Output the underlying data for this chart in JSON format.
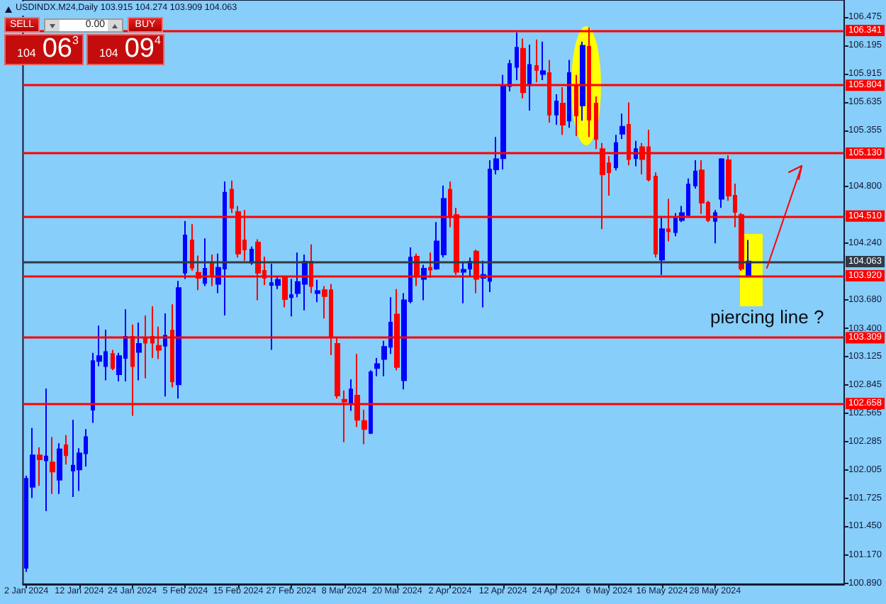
{
  "chart_data": {
    "type": "candlestick",
    "title": "USDINDX.M24,Daily 103.915 104.274 103.909 104.063",
    "categories": [
      "2 Jan 2024",
      null,
      null,
      null,
      null,
      null,
      null,
      null,
      "12 Jan 2024",
      null,
      null,
      null,
      null,
      null,
      null,
      null,
      "24 Jan 2024",
      null,
      null,
      null,
      null,
      null,
      null,
      null,
      "5 Feb 2024",
      null,
      null,
      null,
      null,
      null,
      null,
      null,
      "15 Feb 2024",
      null,
      null,
      null,
      null,
      null,
      null,
      null,
      "27 Feb 2024",
      null,
      null,
      null,
      null,
      null,
      null,
      null,
      "8 Mar 2024",
      null,
      null,
      null,
      null,
      null,
      null,
      null,
      "20 Mar 2024",
      null,
      null,
      null,
      null,
      null,
      null,
      null,
      "2 Apr 2024",
      null,
      null,
      null,
      null,
      null,
      null,
      null,
      "12 Apr 2024",
      null,
      null,
      null,
      null,
      null,
      null,
      null,
      "24 Apr 2024",
      null,
      null,
      null,
      null,
      null,
      null,
      null,
      "6 May 2024",
      null,
      null,
      null,
      null,
      null,
      null,
      null,
      "16 May 2024",
      null,
      null,
      null,
      null,
      null,
      null,
      null,
      "28 May 2024",
      null,
      null,
      null,
      null,
      null,
      null,
      null,
      null,
      null,
      null,
      null,
      null,
      null,
      null,
      null,
      null,
      null,
      null,
      null
    ],
    "ohlc": [
      [
        101.04,
        101.95,
        101.0,
        101.92
      ],
      [
        101.84,
        102.42,
        101.73,
        102.15
      ],
      [
        102.15,
        102.23,
        101.85,
        102.11
      ],
      [
        102.1,
        102.81,
        101.6,
        102.14
      ],
      [
        102.08,
        102.33,
        101.77,
        101.99
      ],
      [
        101.91,
        102.27,
        101.77,
        102.21
      ],
      [
        102.25,
        102.35,
        102.06,
        102.15
      ],
      [
        102.0,
        102.5,
        101.74,
        102.05
      ],
      [
        102.01,
        102.22,
        101.8,
        102.17
      ],
      [
        102.17,
        102.41,
        102.04,
        102.33
      ],
      [
        102.6,
        103.16,
        102.47,
        103.08
      ],
      [
        103.08,
        103.43,
        103.03,
        103.13
      ],
      [
        103.03,
        103.39,
        102.89,
        103.17
      ],
      [
        103.15,
        103.19,
        102.99,
        103.01
      ],
      [
        102.95,
        103.16,
        102.88,
        103.13
      ],
      [
        103.11,
        103.59,
        102.88,
        103.32
      ],
      [
        103.32,
        103.44,
        102.54,
        103.03
      ],
      [
        103.17,
        103.46,
        102.89,
        103.25
      ],
      [
        103.3,
        103.53,
        102.91,
        103.26
      ],
      [
        103.32,
        103.62,
        103.11,
        103.26
      ],
      [
        103.23,
        103.42,
        103.1,
        103.19
      ],
      [
        103.23,
        103.55,
        102.73,
        103.33
      ],
      [
        103.38,
        103.64,
        102.82,
        102.88
      ],
      [
        102.85,
        103.87,
        102.71,
        103.8
      ],
      [
        103.95,
        104.46,
        103.89,
        104.32
      ],
      [
        104.27,
        104.43,
        103.97,
        104.0
      ],
      [
        103.95,
        104.12,
        103.78,
        103.9
      ],
      [
        103.85,
        104.29,
        103.82,
        103.99
      ],
      [
        104.04,
        104.13,
        103.82,
        103.93
      ],
      [
        103.84,
        104.14,
        103.75,
        104.0
      ],
      [
        103.99,
        104.85,
        103.53,
        104.74
      ],
      [
        104.77,
        104.86,
        104.54,
        104.59
      ],
      [
        104.55,
        104.61,
        104.1,
        104.14
      ],
      [
        104.27,
        104.57,
        104.07,
        104.18
      ],
      [
        104.05,
        104.21,
        104.03,
        104.18
      ],
      [
        104.25,
        104.28,
        103.68,
        103.95
      ],
      [
        103.97,
        104.11,
        103.83,
        103.9
      ],
      [
        103.83,
        104.04,
        103.19,
        103.85
      ],
      [
        103.83,
        103.91,
        103.79,
        103.88
      ],
      [
        103.91,
        103.92,
        103.61,
        103.69
      ],
      [
        103.71,
        103.89,
        103.52,
        103.73
      ],
      [
        103.75,
        104.15,
        103.71,
        103.86
      ],
      [
        103.84,
        104.13,
        103.58,
        104.06
      ],
      [
        104.06,
        104.23,
        103.75,
        103.82
      ],
      [
        103.75,
        103.88,
        103.66,
        103.77
      ],
      [
        103.78,
        103.82,
        103.5,
        103.72
      ],
      [
        103.78,
        103.84,
        103.14,
        103.32
      ],
      [
        103.25,
        103.32,
        102.71,
        102.74
      ],
      [
        102.7,
        102.79,
        102.28,
        102.68
      ],
      [
        102.66,
        102.9,
        102.59,
        102.8
      ],
      [
        102.74,
        103.15,
        102.43,
        102.5
      ],
      [
        102.49,
        102.6,
        102.26,
        102.41
      ],
      [
        102.37,
        102.99,
        102.36,
        102.97
      ],
      [
        103.01,
        103.11,
        102.93,
        103.05
      ],
      [
        103.1,
        103.28,
        102.93,
        103.22
      ],
      [
        103.22,
        103.71,
        103.15,
        103.46
      ],
      [
        103.54,
        103.79,
        102.99,
        103.02
      ],
      [
        102.89,
        103.75,
        102.8,
        103.68
      ],
      [
        103.67,
        104.2,
        103.65,
        104.1
      ],
      [
        104.11,
        104.14,
        103.82,
        103.91
      ],
      [
        103.89,
        104.03,
        103.68,
        103.99
      ],
      [
        104.0,
        104.15,
        103.9,
        103.98
      ],
      [
        103.99,
        104.45,
        103.98,
        104.26
      ],
      [
        104.13,
        104.81,
        104.1,
        104.68
      ],
      [
        104.77,
        104.85,
        104.4,
        104.5
      ],
      [
        104.52,
        104.59,
        103.93,
        103.96
      ],
      [
        103.96,
        104.05,
        103.65,
        103.98
      ],
      [
        103.99,
        104.1,
        103.91,
        104.06
      ],
      [
        104.16,
        104.18,
        103.75,
        103.89
      ],
      [
        103.9,
        104.07,
        103.61,
        103.93
      ],
      [
        103.87,
        105.06,
        103.76,
        104.97
      ],
      [
        104.97,
        105.29,
        104.92,
        105.07
      ],
      [
        105.08,
        105.9,
        104.97,
        105.79
      ],
      [
        105.79,
        106.05,
        105.74,
        106.01
      ],
      [
        105.98,
        106.32,
        105.85,
        106.17
      ],
      [
        106.16,
        106.26,
        105.67,
        105.73
      ],
      [
        105.8,
        106.2,
        105.55,
        106.0
      ],
      [
        105.99,
        106.25,
        105.83,
        105.95
      ],
      [
        105.91,
        106.23,
        105.85,
        105.94
      ],
      [
        105.92,
        106.05,
        105.43,
        105.51
      ],
      [
        105.51,
        105.71,
        105.41,
        105.64
      ],
      [
        105.62,
        105.78,
        105.31,
        105.41
      ],
      [
        105.45,
        106.05,
        105.38,
        105.92
      ],
      [
        105.79,
        105.9,
        105.3,
        105.5
      ],
      [
        105.6,
        106.23,
        105.45,
        106.19
      ],
      [
        106.18,
        106.37,
        105.29,
        105.46
      ],
      [
        105.62,
        105.69,
        105.17,
        105.27
      ],
      [
        105.17,
        105.23,
        104.38,
        104.92
      ],
      [
        105.03,
        105.1,
        104.71,
        104.94
      ],
      [
        104.99,
        105.31,
        104.96,
        105.23
      ],
      [
        105.32,
        105.52,
        105.27,
        105.39
      ],
      [
        105.41,
        105.63,
        105.01,
        105.07
      ],
      [
        105.08,
        105.25,
        105.0,
        105.17
      ],
      [
        105.19,
        105.23,
        104.92,
        105.07
      ],
      [
        105.19,
        105.36,
        104.85,
        104.87
      ],
      [
        104.9,
        104.94,
        104.1,
        104.14
      ],
      [
        104.08,
        104.5,
        103.93,
        104.38
      ],
      [
        104.38,
        104.68,
        104.26,
        104.36
      ],
      [
        104.35,
        104.54,
        104.31,
        104.49
      ],
      [
        104.47,
        104.61,
        104.45,
        104.54
      ],
      [
        104.52,
        104.88,
        104.5,
        104.82
      ],
      [
        104.81,
        105.06,
        104.78,
        104.95
      ],
      [
        104.96,
        105.06,
        104.53,
        104.64
      ],
      [
        104.64,
        104.66,
        104.45,
        104.47
      ],
      [
        104.46,
        104.57,
        104.24,
        104.54
      ],
      [
        104.68,
        105.08,
        104.59,
        105.07
      ],
      [
        105.06,
        105.11,
        104.66,
        104.71
      ],
      [
        104.71,
        104.83,
        104.4,
        104.55
      ],
      [
        104.52,
        104.54,
        103.97,
        103.99
      ],
      [
        103.915,
        104.274,
        103.909,
        104.063
      ],
      null,
      null,
      null,
      null,
      null,
      null,
      null,
      null,
      null,
      null,
      null,
      null,
      null,
      null
    ],
    "colors": [
      "#0000ff",
      "#0000ff",
      "#ff0000",
      "#0000ff",
      "#ff0000",
      "#0000ff",
      "#ff0000",
      "#0000ff",
      "#0000ff",
      "#0000ff",
      "#0000ff",
      "#0000ff",
      "#0000ff",
      "#ff0000",
      "#0000ff",
      "#0000ff",
      "#ff0000",
      "#0000ff",
      "#ff0000",
      "#ff0000",
      "#ff0000",
      "#0000ff",
      "#ff0000",
      "#0000ff",
      "#0000ff",
      "#ff0000",
      "#ff0000",
      "#0000ff",
      "#ff0000",
      "#0000ff",
      "#0000ff",
      "#ff0000",
      "#ff0000",
      "#ff0000",
      "#0000ff",
      "#ff0000",
      "#ff0000",
      "#0000ff",
      "#0000ff",
      "#ff0000",
      "#0000ff",
      "#0000ff",
      "#0000ff",
      "#ff0000",
      "#0000ff",
      "#ff0000",
      "#ff0000",
      "#ff0000",
      "#ff0000",
      "#0000ff",
      "#ff0000",
      "#ff0000",
      "#0000ff",
      "#0000ff",
      "#0000ff",
      "#0000ff",
      "#ff0000",
      "#0000ff",
      "#0000ff",
      "#ff0000",
      "#0000ff",
      "#ff0000",
      "#0000ff",
      "#0000ff",
      "#ff0000",
      "#ff0000",
      "#0000ff",
      "#0000ff",
      "#ff0000",
      "#0000ff",
      "#0000ff",
      "#0000ff",
      "#0000ff",
      "#0000ff",
      "#0000ff",
      "#ff0000",
      "#0000ff",
      "#ff0000",
      "#0000ff",
      "#ff0000",
      "#0000ff",
      "#ff0000",
      "#0000ff",
      "#ff0000",
      "#0000ff",
      "#ff0000",
      "#ff0000",
      "#ff0000",
      "#ff0000",
      "#0000ff",
      "#0000ff",
      "#ff0000",
      "#0000ff",
      "#ff0000",
      "#ff0000",
      "#ff0000",
      "#0000ff",
      "#ff0000",
      "#0000ff",
      "#0000ff",
      "#0000ff",
      "#0000ff",
      "#ff0000",
      "#ff0000",
      "#0000ff",
      "#0000ff",
      "#ff0000",
      "#ff0000",
      "#ff0000",
      "#0000ff",
      null,
      null,
      null,
      null,
      null,
      null,
      null,
      null,
      null,
      null,
      null,
      null,
      null,
      null
    ],
    "ylim": [
      100.88,
      106.64
    ],
    "yticks": [
      {
        "value": 100.89,
        "label": "100.890"
      },
      {
        "value": 101.17,
        "label": "101.170"
      },
      {
        "value": 101.45,
        "label": "101.450"
      },
      101.725,
      102.005,
      102.285,
      102.565,
      102.845,
      103.125,
      {
        "value": 103.4,
        "label": "103.400"
      },
      {
        "value": 103.68,
        "label": "103.680"
      },
      {
        "value": 104.24,
        "label": "104.240"
      },
      {
        "value": 104.8,
        "label": "104.800"
      },
      105.355,
      105.635,
      105.915,
      106.195,
      106.475
    ],
    "ref_lines": [
      {
        "axis": "y",
        "value": 106.341,
        "label": "106.341",
        "color": "#ff0000"
      },
      {
        "axis": "y",
        "value": 105.804,
        "label": "105.804",
        "color": "#ff0000"
      },
      {
        "axis": "y",
        "value": 105.13,
        "label": "105.130",
        "color": "#ff0000"
      },
      {
        "axis": "y",
        "value": 104.51,
        "label": "104.510",
        "color": "#ff0000"
      },
      {
        "axis": "y",
        "value": 104.063,
        "label": "104.063",
        "color": "#303a48"
      },
      {
        "axis": "y",
        "value": 103.92,
        "label": "103.920",
        "color": "#ff0000"
      },
      {
        "axis": "y",
        "value": 103.309,
        "label": "103.309",
        "color": "#ff0000"
      },
      {
        "axis": "y",
        "value": 102.658,
        "label": "102.658",
        "color": "#ff0000"
      }
    ],
    "annotations": [
      "piercing line ?",
      "SELL",
      "0.00",
      "BUY",
      "104 06$^{3}$",
      "104 09$^{4}$"
    ]
  }
}
